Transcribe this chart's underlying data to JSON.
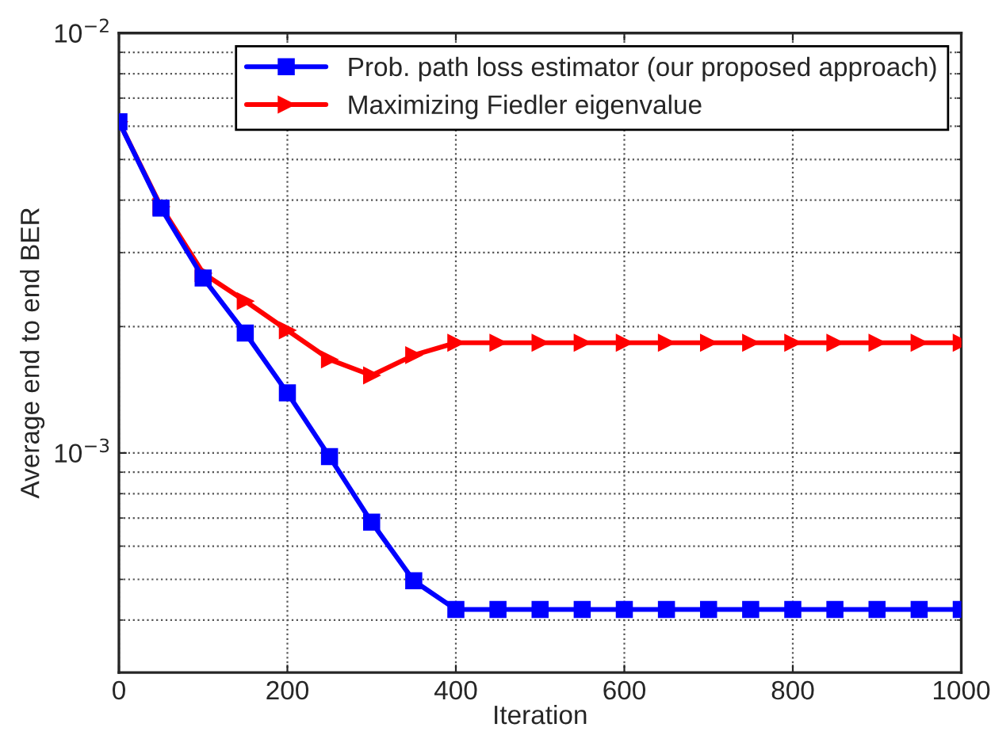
{
  "chart_data": {
    "type": "line",
    "xlabel": "Iteration",
    "ylabel": "Average end to end BER",
    "x": [
      0,
      50,
      100,
      150,
      200,
      250,
      300,
      350,
      400,
      450,
      500,
      550,
      600,
      650,
      700,
      750,
      800,
      850,
      900,
      950,
      1000
    ],
    "series": [
      {
        "name": "Prob. path loss estimator (our proposed approach)",
        "color": "#0000ff",
        "marker": "square",
        "values": [
          0.00615,
          0.00383,
          0.00261,
          0.00193,
          0.00139,
          0.00098,
          0.000684,
          0.000496,
          0.000424,
          0.000424,
          0.000424,
          0.000424,
          0.000424,
          0.000424,
          0.000424,
          0.000424,
          0.000424,
          0.000424,
          0.000424,
          0.000424,
          0.000424
        ]
      },
      {
        "name": "Maximizing Fiedler eigenvalue",
        "color": "#ff0000",
        "marker": "triangle",
        "values": [
          0.00615,
          0.00386,
          0.00268,
          0.0023,
          0.00196,
          0.00167,
          0.00153,
          0.00171,
          0.00183,
          0.00183,
          0.00183,
          0.00183,
          0.00183,
          0.00183,
          0.00183,
          0.00183,
          0.00183,
          0.00183,
          0.00183,
          0.00183,
          0.00183
        ]
      }
    ],
    "log": "y",
    "xlim": [
      0,
      1000
    ],
    "xticks": [
      0,
      200,
      400,
      600,
      800,
      1000
    ],
    "ylim": [
      0.0003,
      0.01
    ],
    "yticks": [
      {
        "value": 0.001,
        "label": "10$^{−3}$"
      },
      {
        "value": 0.01,
        "label": "10$^{−2}$"
      }
    ],
    "grid": true,
    "legend": "top right",
    "line_style": "solid"
  }
}
